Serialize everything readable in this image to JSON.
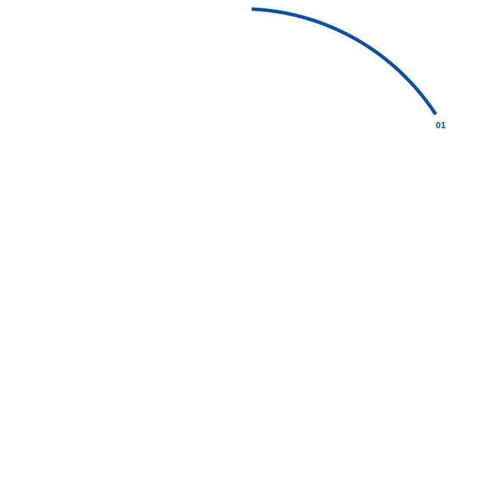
{
  "segment": {
    "label": "01",
    "color": "#0a4fa3"
  }
}
